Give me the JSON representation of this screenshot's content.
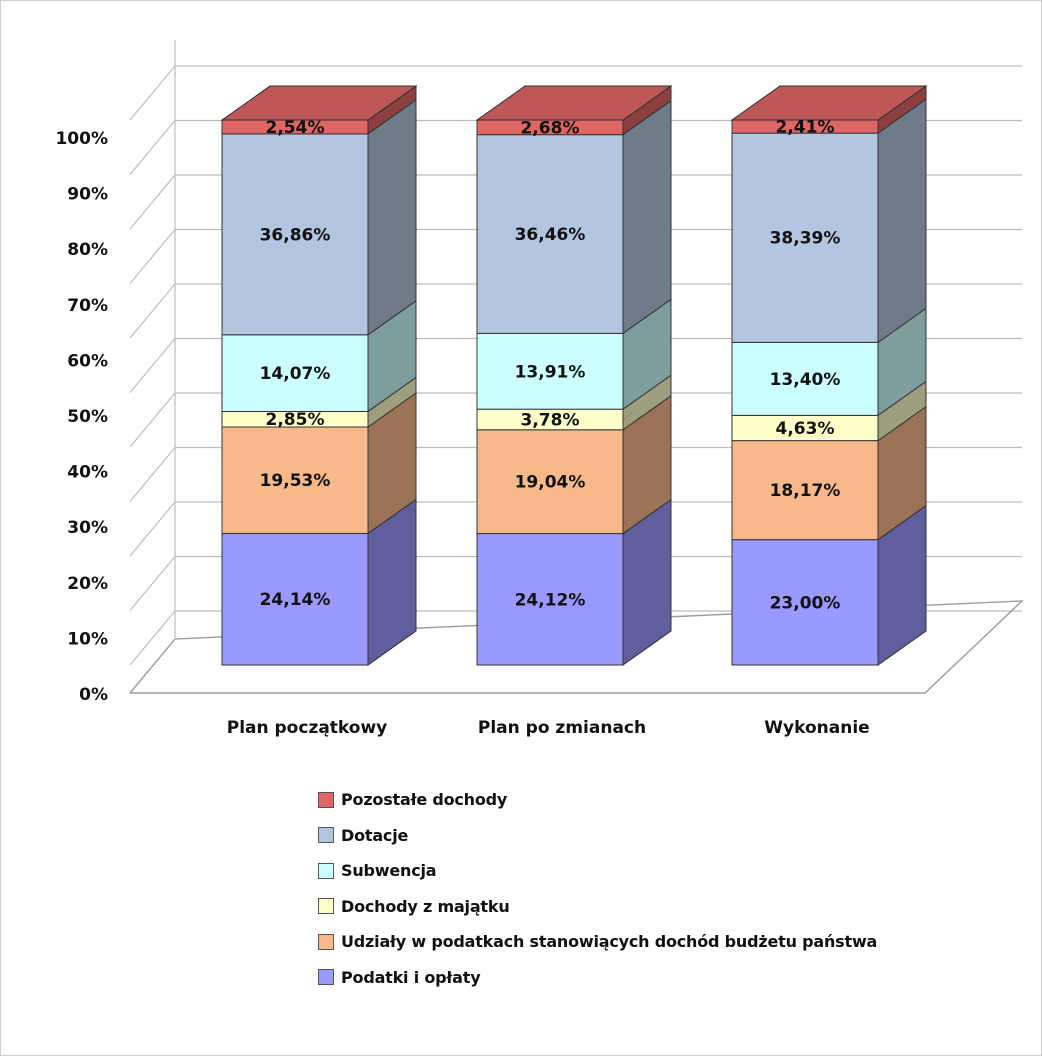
{
  "chart_data": {
    "type": "bar",
    "stacked": "percent",
    "style": "3d",
    "categories": [
      "Plan początkowy",
      "Plan po zmianach",
      "Wykonanie"
    ],
    "yticks": [
      "0%",
      "10%",
      "20%",
      "30%",
      "40%",
      "50%",
      "60%",
      "70%",
      "80%",
      "90%",
      "100%"
    ],
    "ylim": [
      0,
      100
    ],
    "grid": true,
    "legend_position": "bottom",
    "series": [
      {
        "name": "Podatki i opłaty",
        "color": "#9999ff",
        "values": [
          24.14,
          24.12,
          23.0
        ],
        "labels": [
          "24,14%",
          "24,12%",
          "23,00%"
        ]
      },
      {
        "name": "Udziały w podatkach stanowiących dochód budżetu państwa",
        "color": "#f8b98a",
        "values": [
          19.53,
          19.04,
          18.17
        ],
        "labels": [
          "19,53%",
          "19,04%",
          "18,17%"
        ]
      },
      {
        "name": "Dochody z majątku",
        "color": "#ffffcc",
        "values": [
          2.85,
          3.78,
          4.63
        ],
        "labels": [
          "2,85%",
          "3,78%",
          "4,63%"
        ]
      },
      {
        "name": "Subwencja",
        "color": "#ccffff",
        "values": [
          14.07,
          13.91,
          13.4
        ],
        "labels": [
          "14,07%",
          "13,91%",
          "13,40%"
        ]
      },
      {
        "name": "Dotacje",
        "color": "#b3c6e0",
        "values": [
          36.86,
          36.46,
          38.39
        ],
        "labels": [
          "36,86%",
          "36,46%",
          "38,39%"
        ]
      },
      {
        "name": "Pozostałe dochody",
        "color": "#e06666",
        "values": [
          2.54,
          2.68,
          2.41
        ],
        "labels": [
          "2,54%",
          "2,68%",
          "2,41%"
        ]
      }
    ],
    "legend": [
      {
        "label": "Pozostałe dochody",
        "color": "#e06666"
      },
      {
        "label": "Dotacje",
        "color": "#b3c6e0"
      },
      {
        "label": "Subwencja",
        "color": "#ccffff"
      },
      {
        "label": "Dochody z majątku",
        "color": "#ffffcc"
      },
      {
        "label": "Udziały w podatkach stanowiących dochód budżetu państwa",
        "color": "#f8b98a"
      },
      {
        "label": "Podatki i opłaty",
        "color": "#9999ff"
      }
    ]
  }
}
